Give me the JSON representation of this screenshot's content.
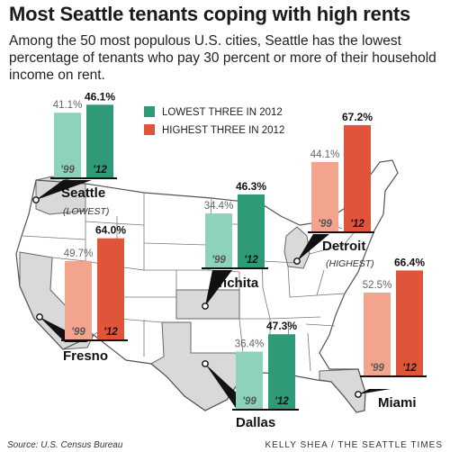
{
  "title": "Most Seattle tenants coping with high rents",
  "subtitle": "Among the 50 most populous U.S. cities, Seattle has the lowest percentage of tenants who pay 30 percent or more of their household income on rent.",
  "footer": {
    "source": "Source: U.S. Census Bureau",
    "credit": "KELLY SHEA / THE SEATTLE TIMES"
  },
  "chart_data": {
    "type": "bar",
    "unit": "%",
    "categories": [
      "'99",
      "'12"
    ],
    "legend": [
      {
        "label": "LOWEST THREE IN 2012",
        "color": "#2e9a77"
      },
      {
        "label": "HIGHEST THREE IN 2012",
        "color": "#e0553a"
      }
    ],
    "colors": {
      "lowest_99": "#8fd2bb",
      "lowest_12": "#2e9a77",
      "highest_99": "#f2a48c",
      "highest_12": "#e0553a",
      "highlight_state": "#d9d9d9"
    },
    "series": [
      {
        "name": "Seattle",
        "note": "(LOWEST)",
        "group": "lowest",
        "values": [
          41.1,
          46.1
        ]
      },
      {
        "name": "Fresno",
        "note": "",
        "group": "highest",
        "values": [
          49.7,
          64.0
        ]
      },
      {
        "name": "Wichita",
        "note": "",
        "group": "lowest",
        "values": [
          34.4,
          46.3
        ]
      },
      {
        "name": "Dallas",
        "note": "",
        "group": "lowest",
        "values": [
          36.4,
          47.3
        ]
      },
      {
        "name": "Detroit",
        "note": "(HIGHEST)",
        "group": "highest",
        "values": [
          44.1,
          67.2
        ]
      },
      {
        "name": "Miami",
        "note": "",
        "group": "highest",
        "values": [
          52.5,
          66.4
        ]
      }
    ]
  }
}
